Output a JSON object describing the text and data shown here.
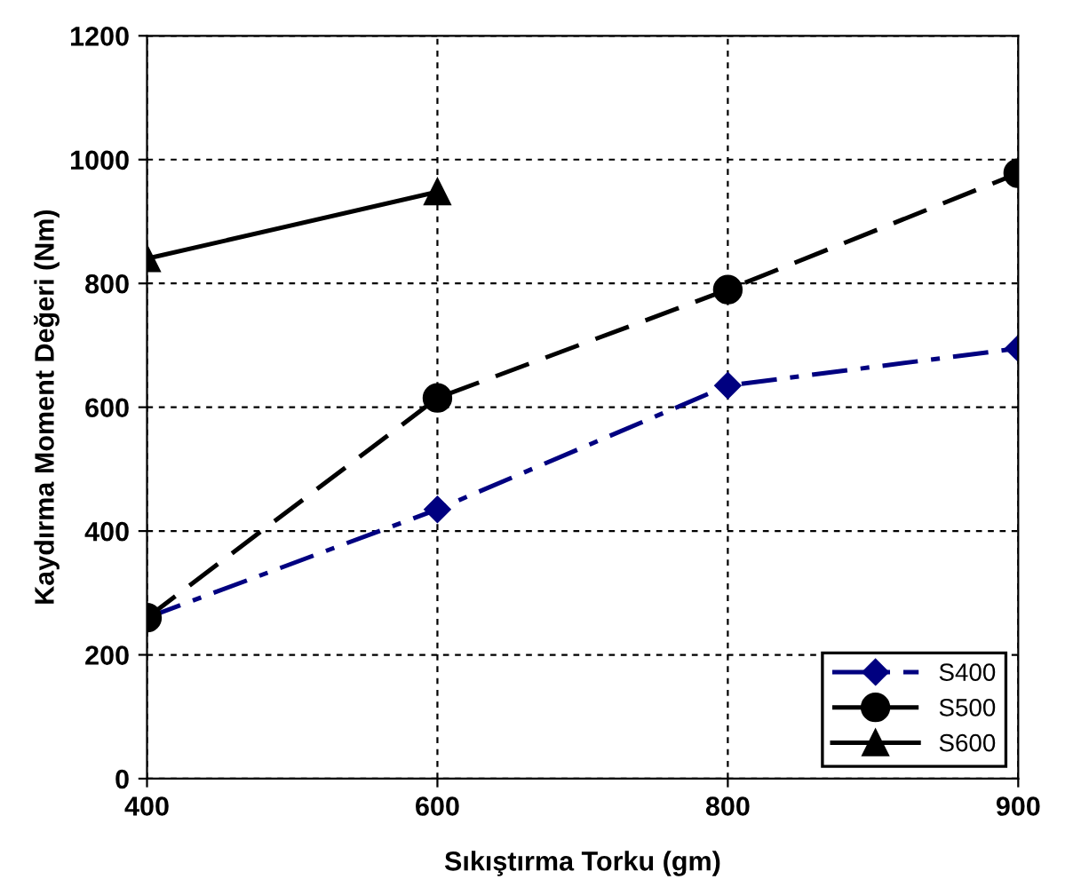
{
  "chart_data": {
    "type": "line",
    "xlabel": "Sıkıştırma Torku (gm)",
    "ylabel": "Kaydırma Moment Değeri (Nm)",
    "categories": [
      "400",
      "600",
      "800",
      "900"
    ],
    "series": [
      {
        "name": "S400",
        "color": "#000080",
        "marker": "diamond",
        "line_style": "dashdot",
        "values": [
          260,
          435,
          635,
          695
        ]
      },
      {
        "name": "S500",
        "color": "#000000",
        "marker": "circle",
        "line_style": "dashed",
        "values": [
          260,
          615,
          790,
          978
        ]
      },
      {
        "name": "S600",
        "color": "#000000",
        "marker": "triangle",
        "line_style": "solid",
        "values": [
          840,
          948,
          null,
          null
        ]
      }
    ],
    "ylim": [
      0,
      1200
    ],
    "yticks": [
      0,
      200,
      400,
      600,
      800,
      1000,
      1200
    ],
    "grid": true,
    "legend": "bottom right"
  }
}
